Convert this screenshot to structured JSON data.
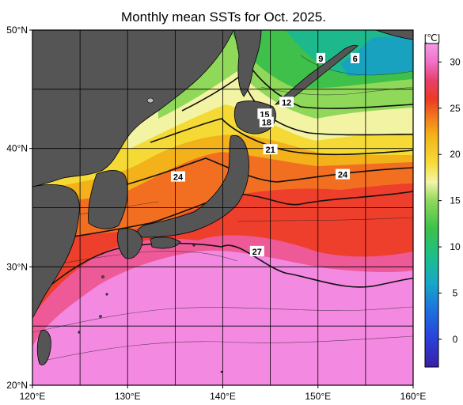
{
  "title": "Monthly mean SSTs for Oct. 2025.",
  "map": {
    "lon_range": [
      120,
      160
    ],
    "lat_range": [
      20,
      50
    ],
    "lon_ticks": [
      {
        "value": 120,
        "label": "120°E"
      },
      {
        "value": 130,
        "label": "130°E"
      },
      {
        "value": 140,
        "label": "140°E"
      },
      {
        "value": 150,
        "label": "150°E"
      },
      {
        "value": 160,
        "label": "160°E"
      }
    ],
    "lat_ticks": [
      {
        "value": 20,
        "label": "20°N"
      },
      {
        "value": 30,
        "label": "30°N"
      },
      {
        "value": 40,
        "label": "40°N"
      },
      {
        "value": 50,
        "label": "50°N"
      }
    ],
    "grid": true,
    "land_color": "#555555",
    "contour_labels": [
      {
        "text": "9",
        "lon": 150.3,
        "lat": 47.6
      },
      {
        "text": "6",
        "lon": 153.9,
        "lat": 47.6
      },
      {
        "text": "12",
        "lon": 146.7,
        "lat": 43.9
      },
      {
        "text": "15",
        "lon": 144.4,
        "lat": 42.9
      },
      {
        "text": "18",
        "lon": 144.6,
        "lat": 42.2
      },
      {
        "text": "21",
        "lon": 145.0,
        "lat": 39.9
      },
      {
        "text": "24",
        "lon": 135.3,
        "lat": 37.6
      },
      {
        "text": "24",
        "lon": 152.6,
        "lat": 37.8
      },
      {
        "text": "27",
        "lon": 143.6,
        "lat": 31.3
      }
    ]
  },
  "colorbar": {
    "unit": "[℃]",
    "min": -3,
    "max": 32,
    "ticks": [
      {
        "value": 0,
        "label": "0"
      },
      {
        "value": 5,
        "label": "5"
      },
      {
        "value": 10,
        "label": "10"
      },
      {
        "value": 15,
        "label": "15"
      },
      {
        "value": 20,
        "label": "20"
      },
      {
        "value": 25,
        "label": "25"
      },
      {
        "value": 30,
        "label": "30"
      }
    ],
    "stops": [
      {
        "value": -3,
        "color": "#3a1fa8"
      },
      {
        "value": 0,
        "color": "#2a3fd8"
      },
      {
        "value": 3,
        "color": "#1e6ee0"
      },
      {
        "value": 6,
        "color": "#18a6c8"
      },
      {
        "value": 9,
        "color": "#1cbf8a"
      },
      {
        "value": 12,
        "color": "#3bc24a"
      },
      {
        "value": 15,
        "color": "#8fd85a"
      },
      {
        "value": 17,
        "color": "#f4f4a8"
      },
      {
        "value": 19,
        "color": "#f6dc3a"
      },
      {
        "value": 22,
        "color": "#f3b418"
      },
      {
        "value": 24,
        "color": "#f37a1e"
      },
      {
        "value": 26,
        "color": "#ec3a24"
      },
      {
        "value": 28,
        "color": "#e8406a"
      },
      {
        "value": 30,
        "color": "#f070c8"
      },
      {
        "value": 32,
        "color": "#f49ae8"
      }
    ]
  }
}
